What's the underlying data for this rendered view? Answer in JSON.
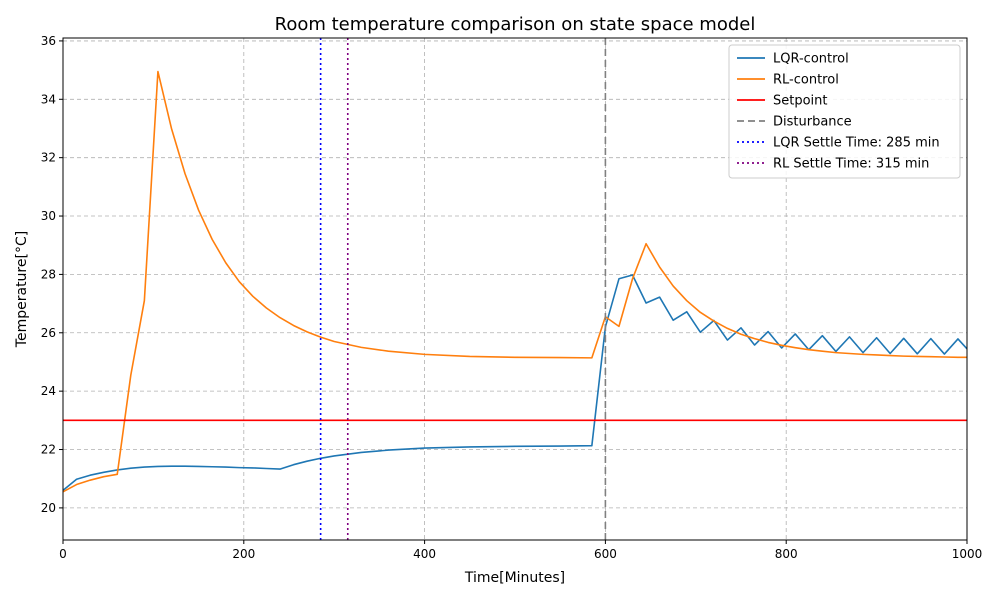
{
  "chart_data": {
    "type": "line",
    "title": "Room temperature comparison on state space model",
    "xlabel": "Time[Minutes]",
    "ylabel": "Temperature[°C]",
    "xlim": [
      0,
      1000
    ],
    "ylim": [
      18.9,
      36.1
    ],
    "xticks": [
      "0",
      "200",
      "400",
      "600",
      "800",
      "1000"
    ],
    "yticks": [
      "20",
      "22",
      "24",
      "26",
      "28",
      "30",
      "32",
      "34",
      "36"
    ],
    "grid": true,
    "legend_position": "top-right",
    "series": [
      {
        "name": "LQR-control",
        "color": "#1f77b4",
        "style": "solid",
        "x": [
          0,
          15,
          30,
          45,
          60,
          75,
          90,
          105,
          120,
          135,
          150,
          165,
          180,
          195,
          210,
          225,
          240,
          255,
          270,
          285,
          300,
          330,
          360,
          400,
          450,
          500,
          550,
          585,
          600,
          615,
          630,
          645,
          660,
          675,
          690,
          705,
          720,
          735,
          750,
          765,
          780,
          795,
          810,
          825,
          840,
          855,
          870,
          885,
          900,
          915,
          930,
          945,
          960,
          975,
          990,
          1000
        ],
        "y": [
          20.6,
          20.98,
          21.12,
          21.22,
          21.3,
          21.36,
          21.4,
          21.42,
          21.43,
          21.43,
          21.42,
          21.41,
          21.4,
          21.38,
          21.37,
          21.35,
          21.33,
          21.48,
          21.6,
          21.7,
          21.78,
          21.9,
          21.98,
          22.05,
          22.09,
          22.11,
          22.12,
          22.13,
          26.2,
          27.85,
          27.98,
          27.02,
          27.22,
          26.43,
          26.72,
          26.02,
          26.42,
          25.75,
          26.17,
          25.58,
          26.04,
          25.48,
          25.96,
          25.42,
          25.9,
          25.36,
          25.86,
          25.32,
          25.83,
          25.29,
          25.81,
          25.28,
          25.8,
          25.27,
          25.79,
          25.45
        ]
      },
      {
        "name": "RL-control",
        "color": "#ff7f0e",
        "style": "solid",
        "x": [
          0,
          15,
          30,
          45,
          60,
          75,
          90,
          105,
          120,
          135,
          150,
          165,
          180,
          195,
          210,
          225,
          240,
          255,
          270,
          285,
          300,
          330,
          360,
          400,
          450,
          500,
          550,
          585,
          600,
          615,
          630,
          645,
          660,
          675,
          690,
          705,
          720,
          735,
          750,
          765,
          780,
          795,
          810,
          825,
          840,
          855,
          870,
          885,
          900,
          915,
          930,
          945,
          960,
          975,
          990,
          1000
        ],
        "y": [
          20.55,
          20.8,
          20.95,
          21.07,
          21.15,
          24.55,
          27.1,
          34.95,
          33.0,
          31.45,
          30.2,
          29.2,
          28.4,
          27.75,
          27.25,
          26.85,
          26.52,
          26.25,
          26.03,
          25.85,
          25.7,
          25.5,
          25.37,
          25.26,
          25.19,
          25.16,
          25.15,
          25.14,
          26.55,
          26.22,
          27.85,
          29.05,
          28.25,
          27.6,
          27.1,
          26.7,
          26.4,
          26.15,
          25.95,
          25.8,
          25.67,
          25.57,
          25.49,
          25.42,
          25.37,
          25.32,
          25.29,
          25.26,
          25.24,
          25.22,
          25.2,
          25.19,
          25.18,
          25.17,
          25.16,
          25.16
        ]
      },
      {
        "name": "Setpoint",
        "color": "#ff0000",
        "style": "solid",
        "x": [
          0,
          1000
        ],
        "y": [
          23,
          23
        ]
      },
      {
        "name": "Disturbance",
        "color": "#808080",
        "style": "dashed",
        "vline": 600
      },
      {
        "name": "LQR Settle Time: 285 min",
        "color": "#0000ff",
        "style": "dotted",
        "vline": 285
      },
      {
        "name": "RL Settle Time: 315 min",
        "color": "#800080",
        "style": "dotted",
        "vline": 315
      }
    ]
  }
}
